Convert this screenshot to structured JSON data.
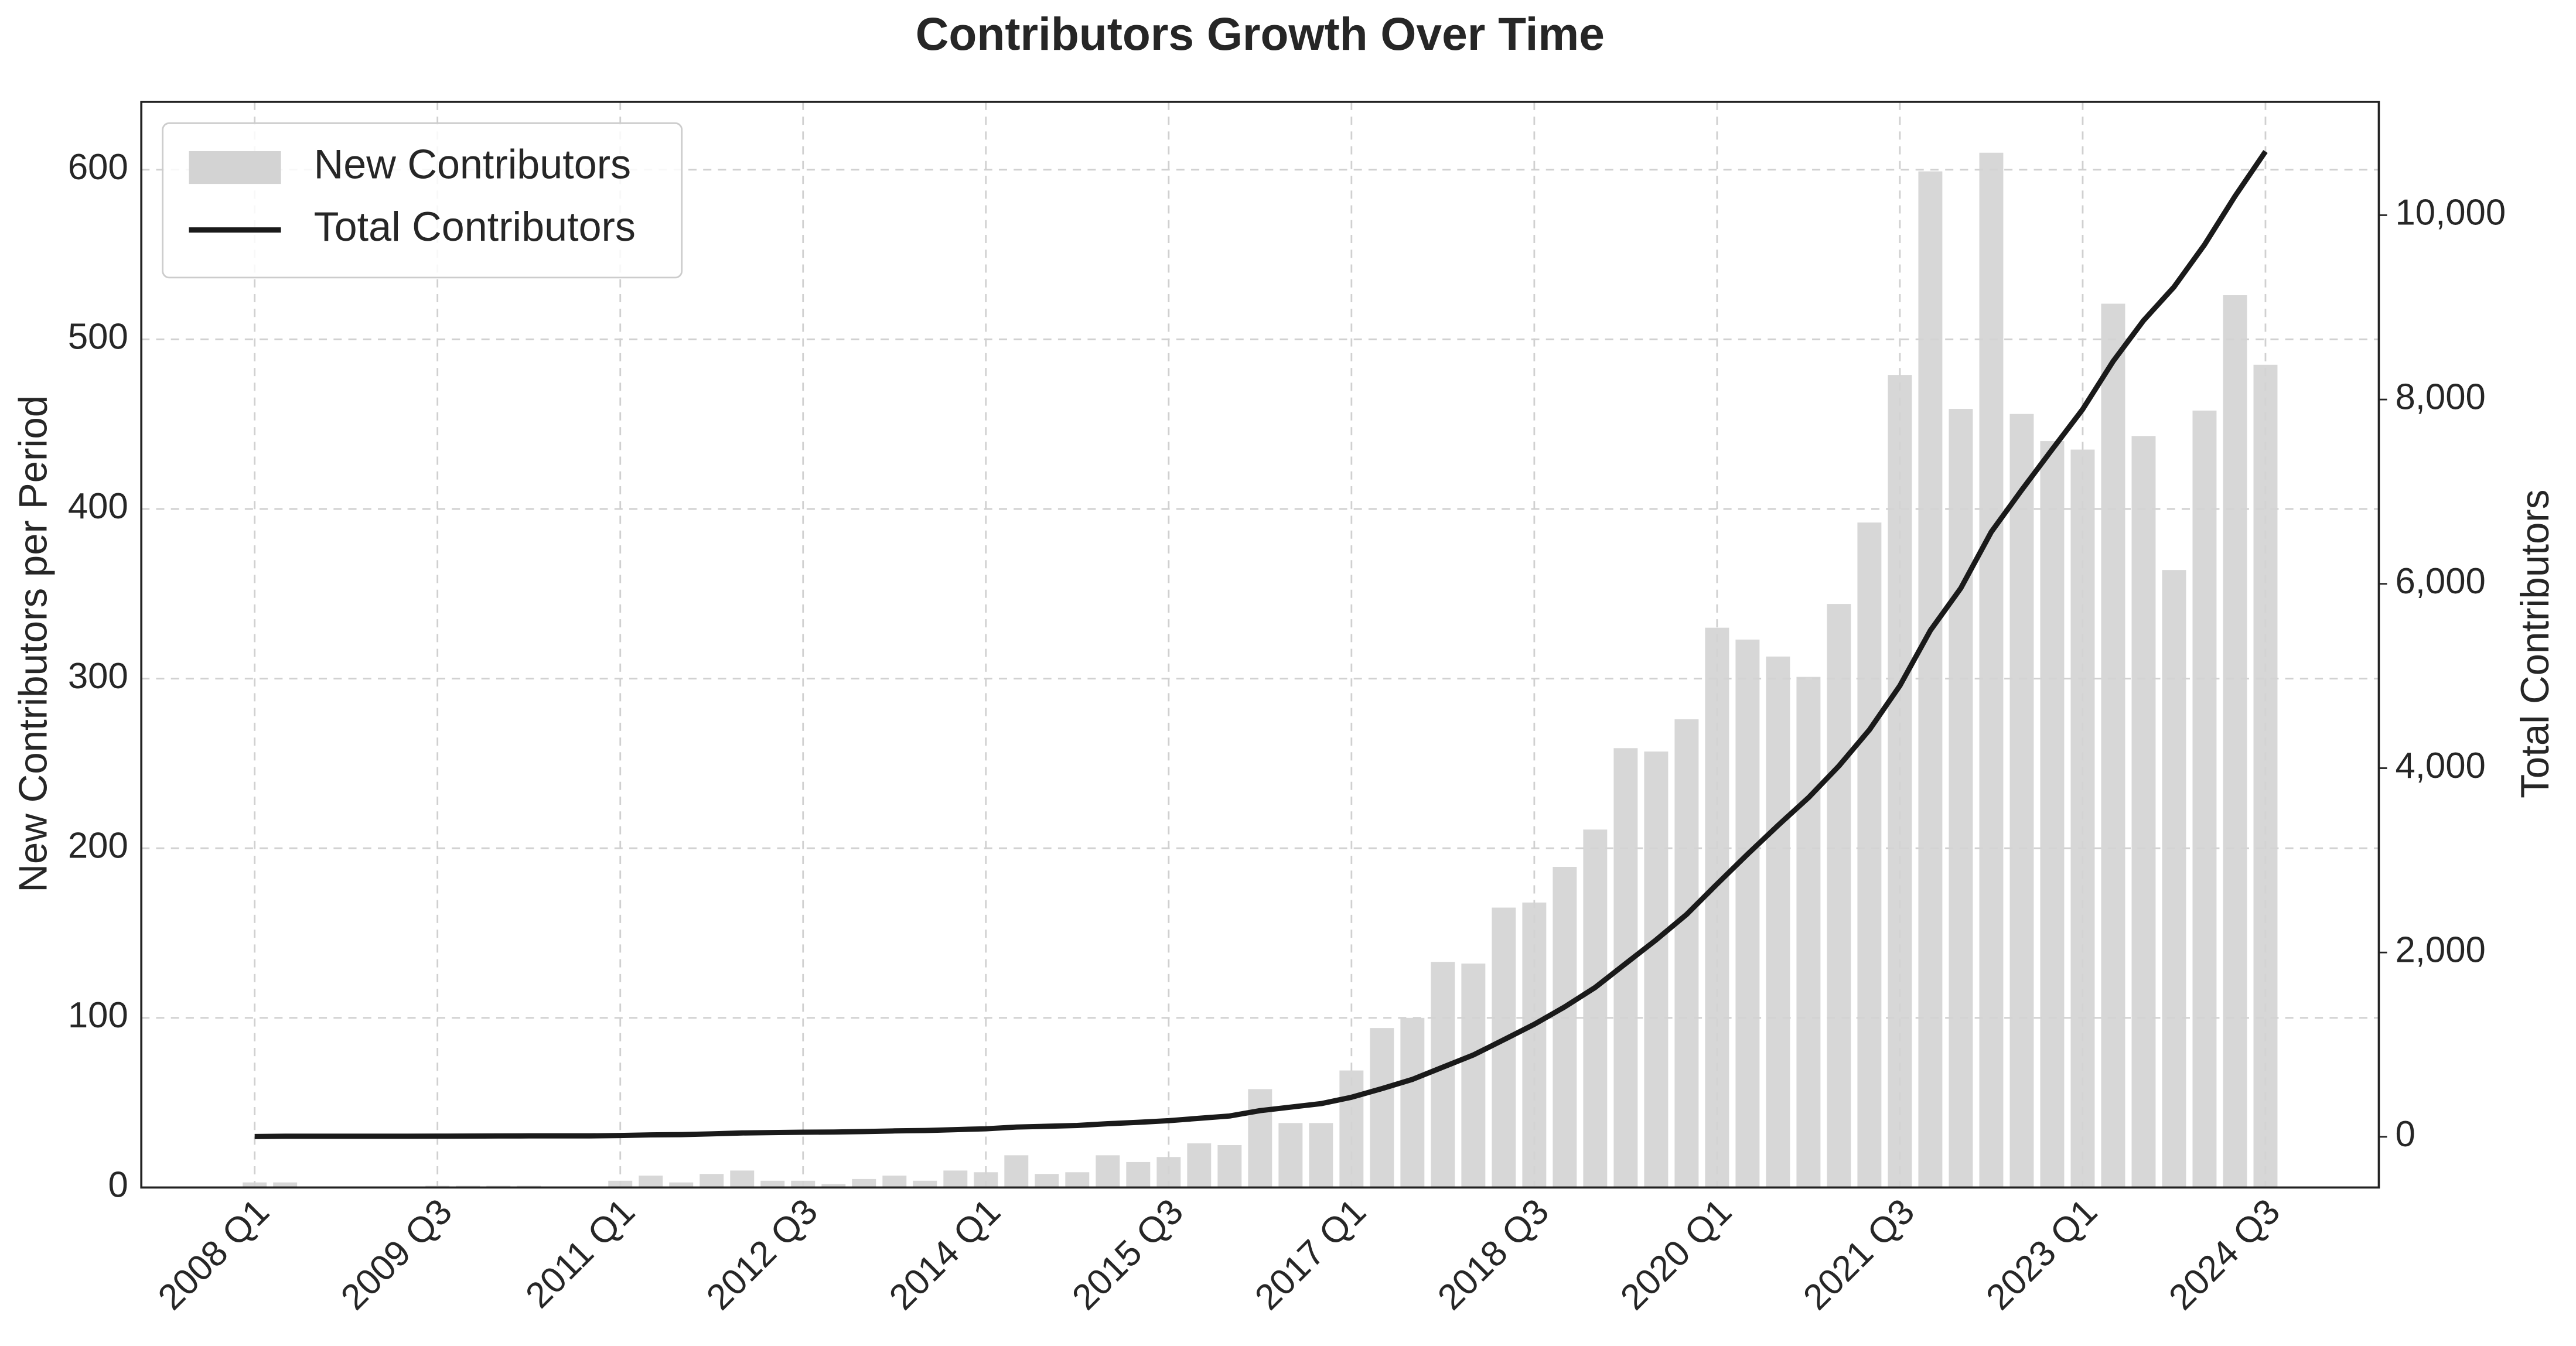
{
  "chart_data": {
    "type": "bar-line",
    "title": "Contributors Growth Over Time",
    "ylabel": "New Contributors per Period",
    "y2label": "Total Contributors",
    "categories": [
      "2008 Q1",
      null,
      null,
      null,
      null,
      null,
      "2009 Q3",
      null,
      null,
      null,
      null,
      null,
      "2011 Q1",
      null,
      null,
      null,
      null,
      null,
      "2012 Q3",
      null,
      null,
      null,
      null,
      null,
      "2014 Q1",
      null,
      null,
      null,
      null,
      null,
      "2015 Q3",
      null,
      null,
      null,
      null,
      null,
      "2017 Q1",
      null,
      null,
      null,
      null,
      null,
      "2018 Q3",
      null,
      null,
      null,
      null,
      null,
      "2020 Q1",
      null,
      null,
      null,
      null,
      null,
      "2021 Q3",
      null,
      null,
      null,
      null,
      null,
      "2023 Q1",
      null,
      null,
      null,
      null,
      null,
      "2024 Q3"
    ],
    "series": [
      {
        "name": "New Contributors",
        "type": "bar",
        "color": "#d3d3d3",
        "values": [
          3,
          3,
          0,
          0,
          0,
          0,
          1,
          1,
          1,
          1,
          0,
          0,
          4,
          7,
          3,
          8,
          10,
          4,
          4,
          2,
          5,
          7,
          4,
          10,
          9,
          19,
          8,
          9,
          19,
          15,
          18,
          26,
          25,
          58,
          38,
          38,
          69,
          94,
          100,
          133,
          132,
          165,
          168,
          189,
          211,
          259,
          257,
          276,
          330,
          323,
          313,
          301,
          344,
          392,
          479,
          599,
          459,
          610,
          456,
          440,
          435,
          521,
          443,
          364,
          458,
          526,
          485
        ]
      },
      {
        "name": "Total Contributors",
        "type": "line",
        "axis": "y2",
        "color": "#1a1a1a",
        "values": [
          3,
          6,
          6,
          6,
          6,
          6,
          7,
          8,
          9,
          10,
          10,
          10,
          14,
          21,
          24,
          32,
          42,
          46,
          50,
          52,
          57,
          64,
          68,
          78,
          87,
          106,
          114,
          123,
          142,
          157,
          175,
          201,
          226,
          284,
          322,
          360,
          429,
          523,
          623,
          756,
          888,
          1053,
          1221,
          1410,
          1621,
          1880,
          2137,
          2413,
          2743,
          3066,
          3379,
          3680,
          4024,
          4416,
          4895,
          5494,
          5953,
          6563,
          7019,
          7459,
          7894,
          8415,
          8858,
          9222,
          9680,
          10206,
          10691
        ]
      }
    ],
    "ylim": [
      0,
      640
    ],
    "yticks": [
      0,
      100,
      200,
      300,
      400,
      500,
      600
    ],
    "y2lim": [
      -550,
      11230
    ],
    "y2ticks": [
      0,
      {
        "value": 2000,
        "label": "2,000"
      },
      {
        "value": 4000,
        "label": "4,000"
      },
      {
        "value": 6000,
        "label": "6,000"
      },
      {
        "value": 8000,
        "label": "8,000"
      },
      {
        "value": 10000,
        "label": "10,000"
      }
    ],
    "grid": true,
    "legend": "upper left"
  }
}
